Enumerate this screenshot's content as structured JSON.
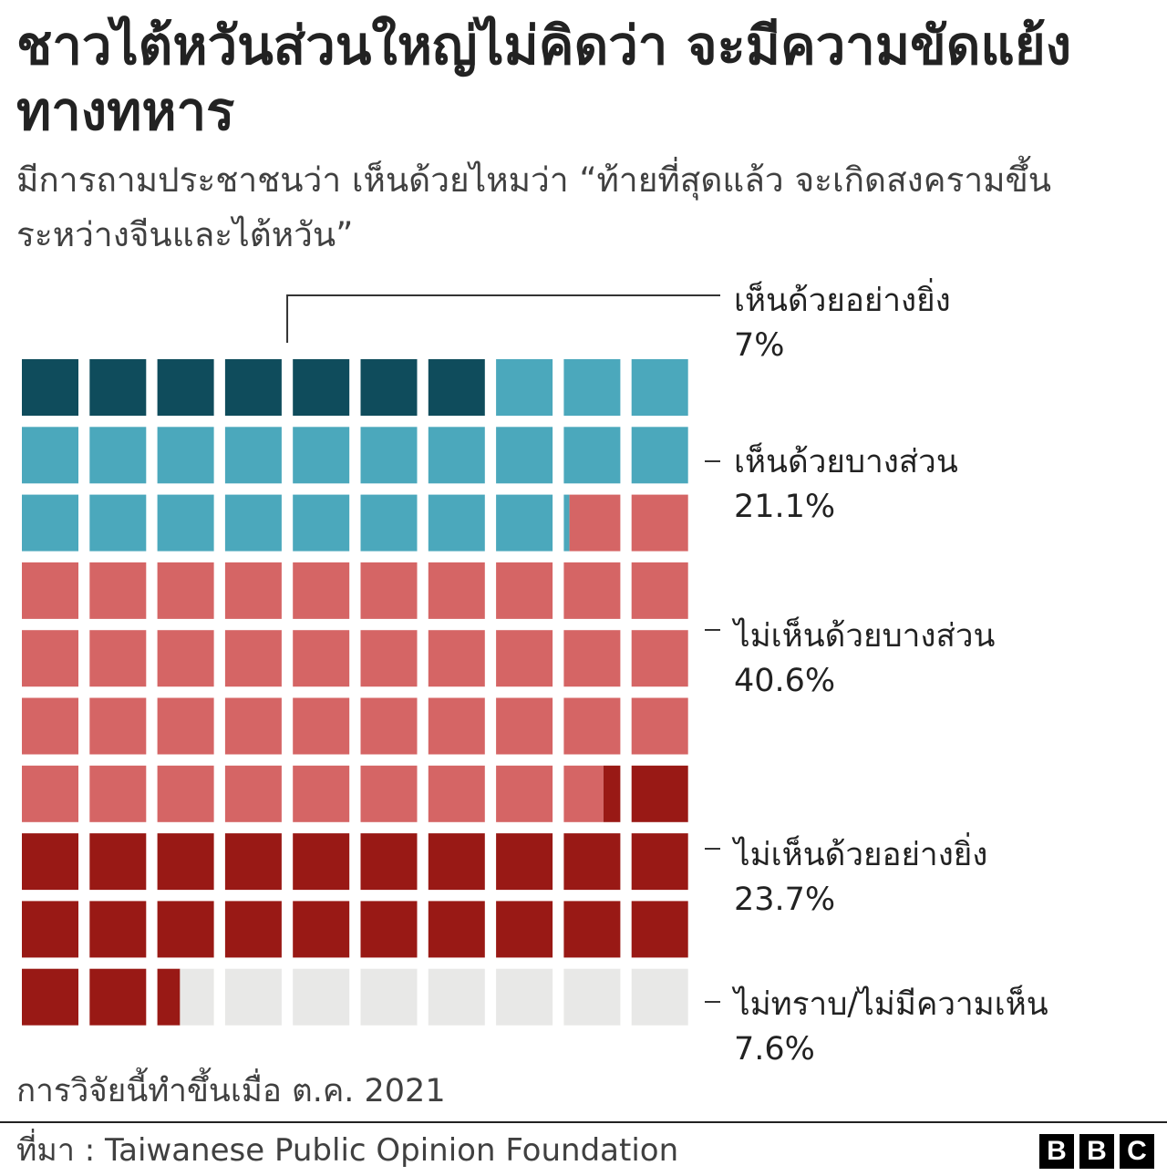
{
  "title": "ชาวไต้หวันส่วนใหญ่ไม่คิดว่า จะมีความขัดแย้งทางทหาร",
  "subtitle": "มีการถามประชาชนว่า เห็นด้วยไหมว่า “ท้ายที่สุดแล้ว จะเกิดสงครามขึ้นระหว่างจีนและไต้หวัน”",
  "note": "การวิจัยนี้ทำขึ้นเมื่อ ต.ค. 2021",
  "source": "ที่มา : Taiwanese Public Opinion Foundation",
  "logo": [
    "B",
    "B",
    "C"
  ],
  "chart_data": {
    "type": "waffle",
    "grid": {
      "rows": 10,
      "cols": 10,
      "total": 100
    },
    "categories": [
      {
        "name": "เห็นด้วยอย่างยิ่ง",
        "label": "7%",
        "value": 7,
        "color": "#0f4c5c"
      },
      {
        "name": "เห็นด้วยบางส่วน",
        "label": "21.1%",
        "value": 21.1,
        "color": "#4ba8bc"
      },
      {
        "name": "ไม่เห็นด้วยบางส่วน",
        "label": "40.6%",
        "value": 40.6,
        "color": "#d56565"
      },
      {
        "name": "ไม่เห็นด้วยอย่างยิ่ง",
        "label": "23.7%",
        "value": 23.7,
        "color": "#991915"
      },
      {
        "name": "ไม่ทราบ/ไม่มีความเห็น",
        "label": "7.6%",
        "value": 7.6,
        "color": "#e8e8e7"
      }
    ]
  }
}
